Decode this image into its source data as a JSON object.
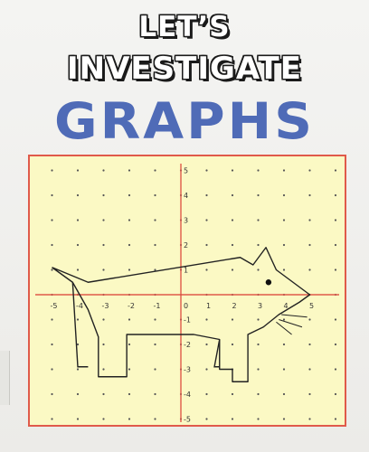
{
  "cover": {
    "title_line1": "LET’S",
    "title_line2": "INVESTIGATE",
    "title_line3": "GRAPHS",
    "title_color": "#4f6bb7",
    "border_color": "#e05a4a",
    "grid_background": "#fbf9c4"
  },
  "chart_data": {
    "type": "line",
    "xlim": [
      -5,
      5
    ],
    "ylim": [
      -5,
      5
    ],
    "x_ticks": [
      "-5",
      "-4",
      "-3",
      "-2",
      "-1",
      "1",
      "2",
      "3",
      "4",
      "5"
    ],
    "y_ticks_pos": [
      "1",
      "2",
      "3",
      "4",
      "5"
    ],
    "y_ticks_neg": [
      "-1",
      "-2",
      "-3",
      "-4",
      "-5"
    ],
    "origin_label": "0",
    "grid": "dots",
    "shape": {
      "outline": [
        [
          -5,
          1.1
        ],
        [
          -4.2,
          0.5
        ],
        [
          -3.6,
          -0.6
        ],
        [
          -3.2,
          -1.7
        ],
        [
          -3.2,
          -3.3
        ],
        [
          -2.1,
          -3.3
        ],
        [
          -2.1,
          -1.6
        ],
        [
          0.5,
          -1.6
        ],
        [
          1.5,
          -1.8
        ],
        [
          1.5,
          -3.0
        ],
        [
          2.0,
          -3.0
        ],
        [
          2.0,
          -3.5
        ],
        [
          2.6,
          -3.5
        ],
        [
          2.6,
          -1.6
        ],
        [
          3.2,
          -1.3
        ],
        [
          3.8,
          -0.8
        ],
        [
          4.6,
          -0.3
        ],
        [
          5.0,
          0.0
        ],
        [
          3.7,
          1.0
        ],
        [
          3.3,
          1.9
        ],
        [
          2.8,
          1.2
        ],
        [
          2.3,
          1.5
        ],
        [
          -3.6,
          0.5
        ],
        [
          -5,
          1.1
        ]
      ],
      "front_leg": [
        [
          -4.2,
          0.5
        ],
        [
          -4.0,
          -2.9
        ],
        [
          -3.6,
          -2.9
        ]
      ],
      "back_leg": [
        [
          1.5,
          -1.8
        ],
        [
          1.3,
          -2.9
        ],
        [
          1.5,
          -2.9
        ]
      ],
      "eye": [
        3.4,
        0.5
      ],
      "whiskers": [
        [
          [
            3.9,
            -0.8
          ],
          [
            4.9,
            -0.9
          ]
        ],
        [
          [
            3.8,
            -1.0
          ],
          [
            4.7,
            -1.3
          ]
        ],
        [
          [
            3.7,
            -1.1
          ],
          [
            4.3,
            -1.6
          ]
        ]
      ]
    }
  }
}
